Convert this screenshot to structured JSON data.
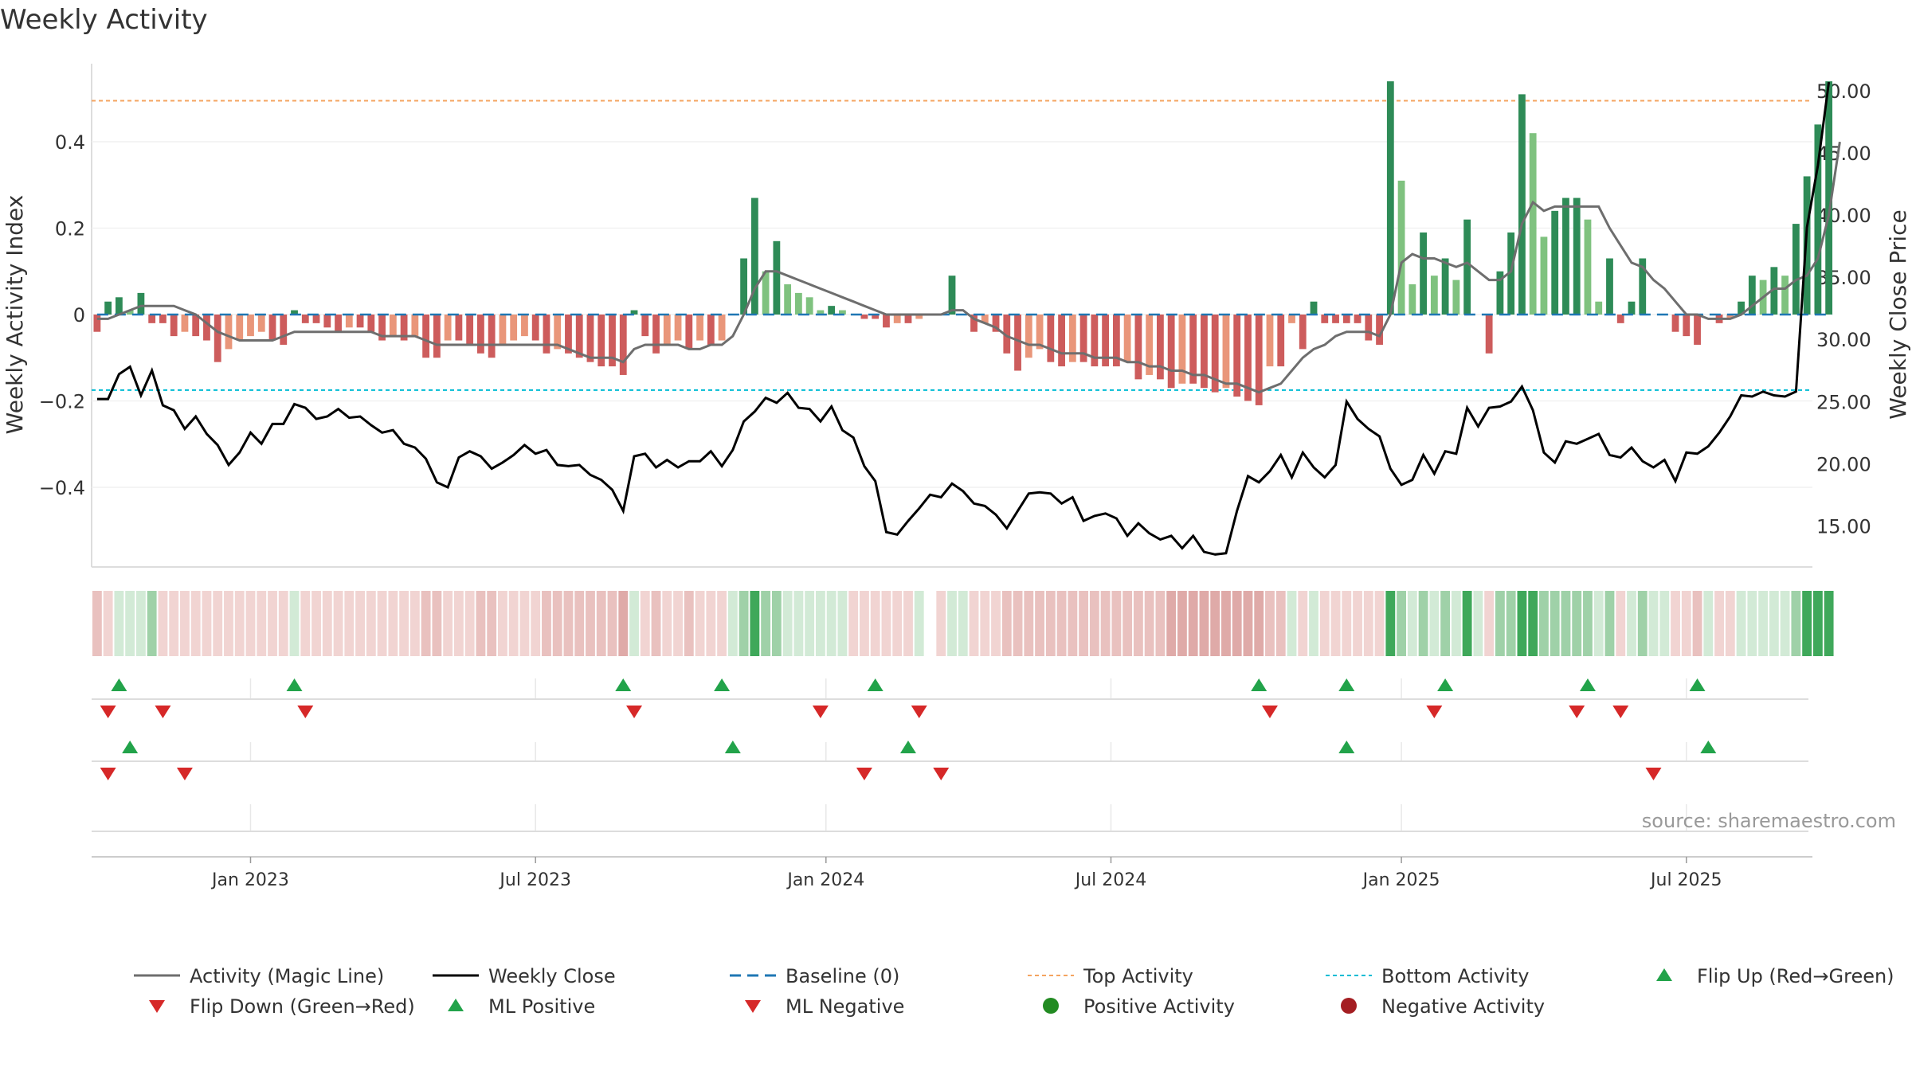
{
  "chart_data": {
    "type": "bar",
    "title": "Weekly Activity",
    "ylabel_left": "Weekly Activity Index",
    "ylabel_right": "Weekly Close Price",
    "left_ylim": [
      -0.59,
      0.59
    ],
    "right_ylim": [
      11.5,
      52.5
    ],
    "left_ticks": [
      {
        "v": 0.4,
        "label": "0.4"
      },
      {
        "v": 0.2,
        "label": "0.2"
      },
      {
        "v": 0,
        "label": "0"
      },
      {
        "v": -0.2,
        "label": "−0.2"
      },
      {
        "v": -0.4,
        "label": "−0.4"
      }
    ],
    "right_ticks": [
      {
        "v": 50,
        "label": "50.00"
      },
      {
        "v": 45,
        "label": "45.00"
      },
      {
        "v": 40,
        "label": "40.00"
      },
      {
        "v": 35,
        "label": "35.00"
      },
      {
        "v": 30,
        "label": "30.00"
      },
      {
        "v": 25,
        "label": "25.00"
      },
      {
        "v": 20,
        "label": "20.00"
      },
      {
        "v": 15,
        "label": "15.00"
      }
    ],
    "x_ticks": [
      {
        "week": 14,
        "label": "Jan 2023"
      },
      {
        "week": 40,
        "label": "Jul 2023"
      },
      {
        "week": 66.5,
        "label": "Jan 2024"
      },
      {
        "week": 92.5,
        "label": "Jul 2024"
      },
      {
        "week": 119,
        "label": "Jan 2025"
      },
      {
        "week": 145,
        "label": "Jul 2025"
      }
    ],
    "x_range": [
      -0.5,
      156.5
    ],
    "top_activity": 0.495,
    "bottom_activity": -0.175,
    "source": "source: sharemaestro.com",
    "weekly_activity": [
      -0.04,
      0.03,
      0.04,
      0.01,
      0.05,
      -0.02,
      -0.02,
      -0.05,
      -0.04,
      -0.05,
      -0.06,
      -0.11,
      -0.08,
      -0.06,
      -0.05,
      -0.04,
      -0.06,
      -0.07,
      0.01,
      -0.02,
      -0.02,
      -0.03,
      -0.04,
      -0.03,
      -0.03,
      -0.04,
      -0.06,
      -0.05,
      -0.06,
      -0.05,
      -0.1,
      -0.1,
      -0.06,
      -0.06,
      -0.07,
      -0.09,
      -0.1,
      -0.07,
      -0.06,
      -0.05,
      -0.06,
      -0.09,
      -0.08,
      -0.09,
      -0.1,
      -0.11,
      -0.12,
      -0.12,
      -0.14,
      0.01,
      -0.05,
      -0.09,
      -0.07,
      -0.06,
      -0.08,
      -0.06,
      -0.07,
      -0.06,
      0.0,
      0.13,
      0.27,
      0.1,
      0.17,
      0.07,
      0.05,
      0.04,
      0.01,
      0.02,
      0.01,
      0.0,
      -0.01,
      -0.01,
      -0.03,
      -0.02,
      -0.02,
      -0.01,
      0.0,
      0.0,
      0.09,
      0.0,
      -0.04,
      -0.02,
      -0.04,
      -0.09,
      -0.13,
      -0.1,
      -0.08,
      -0.11,
      -0.12,
      -0.11,
      -0.11,
      -0.12,
      -0.12,
      -0.12,
      -0.11,
      -0.15,
      -0.14,
      -0.15,
      -0.17,
      -0.16,
      -0.16,
      -0.17,
      -0.18,
      -0.17,
      -0.19,
      -0.2,
      -0.21,
      -0.12,
      -0.12,
      -0.02,
      -0.08,
      0.03,
      -0.02,
      -0.02,
      -0.02,
      -0.02,
      -0.06,
      -0.07,
      0.54,
      0.31,
      0.07,
      0.19,
      0.09,
      0.13,
      0.08,
      0.22,
      0.0,
      -0.09,
      0.1,
      0.19,
      0.51,
      0.42,
      0.18,
      0.24,
      0.27,
      0.27,
      0.22,
      0.03,
      0.13,
      -0.02,
      0.03,
      0.13,
      0.0,
      0.0,
      -0.04,
      -0.05,
      -0.07,
      0.0,
      -0.02,
      -0.01,
      0.03,
      0.09,
      0.08,
      0.11,
      0.09,
      0.21,
      0.32,
      0.44,
      0.54
    ],
    "activity_magic_line": [
      -0.01,
      -0.01,
      0.0,
      0.01,
      0.02,
      0.02,
      0.02,
      0.02,
      0.01,
      0.0,
      -0.02,
      -0.04,
      -0.05,
      -0.06,
      -0.06,
      -0.06,
      -0.06,
      -0.05,
      -0.04,
      -0.04,
      -0.04,
      -0.04,
      -0.04,
      -0.04,
      -0.04,
      -0.04,
      -0.05,
      -0.05,
      -0.05,
      -0.05,
      -0.06,
      -0.07,
      -0.07,
      -0.07,
      -0.07,
      -0.07,
      -0.07,
      -0.07,
      -0.07,
      -0.07,
      -0.07,
      -0.07,
      -0.07,
      -0.08,
      -0.09,
      -0.1,
      -0.1,
      -0.1,
      -0.11,
      -0.08,
      -0.07,
      -0.07,
      -0.07,
      -0.07,
      -0.08,
      -0.08,
      -0.07,
      -0.07,
      -0.05,
      0.0,
      0.06,
      0.1,
      0.1,
      0.09,
      0.08,
      0.07,
      0.06,
      0.05,
      0.04,
      0.03,
      0.02,
      0.01,
      0.0,
      0.0,
      0.0,
      0.0,
      0.0,
      0.0,
      0.01,
      0.01,
      -0.01,
      -0.02,
      -0.03,
      -0.05,
      -0.06,
      -0.07,
      -0.07,
      -0.08,
      -0.09,
      -0.09,
      -0.09,
      -0.1,
      -0.1,
      -0.1,
      -0.11,
      -0.11,
      -0.12,
      -0.12,
      -0.13,
      -0.13,
      -0.14,
      -0.14,
      -0.15,
      -0.16,
      -0.16,
      -0.17,
      -0.18,
      -0.17,
      -0.16,
      -0.13,
      -0.1,
      -0.08,
      -0.07,
      -0.05,
      -0.04,
      -0.04,
      -0.04,
      -0.05,
      0.0,
      0.12,
      0.14,
      0.13,
      0.13,
      0.12,
      0.11,
      0.12,
      0.1,
      0.08,
      0.08,
      0.1,
      0.21,
      0.26,
      0.24,
      0.25,
      0.25,
      0.25,
      0.25,
      0.25,
      0.2,
      0.16,
      0.12,
      0.11,
      0.08,
      0.06,
      0.03,
      0.0,
      0.0,
      -0.01,
      -0.01,
      -0.01,
      0.0,
      0.02,
      0.04,
      0.06,
      0.06,
      0.08,
      0.09,
      0.13,
      0.23,
      0.4
    ],
    "weekly_close": [
      25.2,
      25.2,
      27.2,
      27.8,
      25.5,
      27.5,
      24.7,
      24.3,
      22.8,
      23.8,
      22.4,
      21.5,
      19.9,
      20.9,
      22.5,
      21.6,
      23.2,
      23.2,
      24.8,
      24.5,
      23.6,
      23.8,
      24.4,
      23.7,
      23.8,
      23.1,
      22.5,
      22.7,
      21.6,
      21.3,
      20.4,
      18.5,
      18.1,
      20.5,
      21.0,
      20.6,
      19.6,
      20.1,
      20.7,
      21.5,
      20.8,
      21.1,
      19.9,
      19.8,
      19.9,
      19.1,
      18.7,
      17.9,
      16.2,
      20.6,
      20.8,
      19.7,
      20.3,
      19.7,
      20.2,
      20.2,
      21.0,
      19.8,
      21.1,
      23.4,
      24.2,
      25.3,
      24.9,
      25.7,
      24.5,
      24.4,
      23.4,
      24.6,
      22.7,
      22.1,
      19.8,
      18.6,
      14.5,
      14.3,
      15.4,
      16.4,
      17.5,
      17.3,
      18.4,
      17.8,
      16.8,
      16.6,
      15.9,
      14.8,
      16.2,
      17.6,
      17.7,
      17.6,
      16.8,
      17.3,
      15.4,
      15.8,
      16.0,
      15.6,
      14.2,
      15.2,
      14.4,
      13.9,
      14.2,
      13.2,
      14.2,
      12.9,
      12.7,
      12.8,
      16.2,
      19.0,
      18.5,
      19.4,
      20.7,
      18.9,
      20.9,
      19.7,
      18.9,
      19.9,
      25.0,
      23.6,
      22.8,
      22.2,
      19.6,
      18.3,
      18.7,
      20.7,
      19.2,
      21.0,
      20.8,
      24.5,
      23.0,
      24.5,
      24.6,
      25.0,
      26.2,
      24.3,
      20.9,
      20.1,
      21.8,
      21.6,
      22.0,
      22.4,
      20.7,
      20.5,
      21.3,
      20.2,
      19.7,
      20.3,
      18.6,
      20.9,
      20.8,
      21.4,
      22.5,
      23.8,
      25.5,
      25.4,
      25.8,
      25.5,
      25.4,
      25.8,
      39.0,
      44.0,
      50.7
    ],
    "intensity_strip": [
      -2,
      -1,
      1,
      1,
      1,
      2,
      -1,
      -1,
      -1,
      -1,
      -1,
      -1,
      -1,
      -1,
      -1,
      -1,
      -1,
      -1,
      1,
      -1,
      -1,
      -1,
      -1,
      -1,
      -1,
      -1,
      -1,
      -1,
      -1,
      -1,
      -2,
      -2,
      -1,
      -1,
      -1,
      -2,
      -2,
      -1,
      -1,
      -1,
      -1,
      -2,
      -2,
      -2,
      -2,
      -2,
      -2,
      -2,
      -3,
      1,
      -1,
      -2,
      -1,
      -1,
      -2,
      -1,
      -1,
      -1,
      1,
      2,
      3,
      2,
      2,
      1,
      1,
      1,
      1,
      1,
      1,
      -1,
      -1,
      -1,
      -1,
      -1,
      -1,
      1,
      0,
      -1,
      1,
      1,
      -1,
      -1,
      -1,
      -2,
      -2,
      -2,
      -2,
      -2,
      -2,
      -2,
      -2,
      -2,
      -2,
      -2,
      -2,
      -2,
      -2,
      -2,
      -3,
      -3,
      -3,
      -3,
      -3,
      -3,
      -3,
      -3,
      -3,
      -2,
      -2,
      1,
      -1,
      1,
      -1,
      -1,
      -1,
      -1,
      -1,
      -1,
      3,
      2,
      1,
      2,
      1,
      2,
      1,
      3,
      1,
      -1,
      2,
      2,
      3,
      3,
      2,
      2,
      2,
      2,
      2,
      1,
      2,
      -1,
      1,
      2,
      1,
      1,
      -1,
      -1,
      -2,
      1,
      -1,
      -1,
      1,
      1,
      1,
      1,
      1,
      2,
      3,
      3,
      3
    ],
    "flip_up": [
      2,
      18,
      48,
      57,
      71,
      106,
      114,
      123,
      136,
      146
    ],
    "flip_down": [
      1,
      6,
      19,
      49,
      66,
      75,
      107,
      122,
      135,
      139
    ],
    "ml_positive": [
      3,
      58,
      74,
      114,
      147
    ],
    "ml_negative": [
      1,
      8,
      70,
      77,
      142
    ],
    "positive_activity": [],
    "negative_activity": [],
    "legend": [
      {
        "key": "magic",
        "label": "Activity (Magic Line)"
      },
      {
        "key": "close",
        "label": "Weekly Close"
      },
      {
        "key": "baseline",
        "label": "Baseline (0)"
      },
      {
        "key": "top",
        "label": "Top Activity"
      },
      {
        "key": "bottom",
        "label": "Bottom Activity"
      },
      {
        "key": "flipup",
        "label": "Flip Up (Red→Green)"
      },
      {
        "key": "flipdown",
        "label": "Flip Down (Green→Red)"
      },
      {
        "key": "mlpos",
        "label": "ML Positive"
      },
      {
        "key": "mlneg",
        "label": "ML Negative"
      },
      {
        "key": "posact",
        "label": "Positive Activity"
      },
      {
        "key": "negact",
        "label": "Negative Activity"
      }
    ],
    "colors": {
      "strong_green": "#2e8b57",
      "light_green": "#7fc27f",
      "strong_red": "#cd5c5c",
      "light_red": "#e9967a",
      "magic_line": "#6e6e6e",
      "close_line": "#000000",
      "baseline": "#1f77b4",
      "top_line": "#f4a460",
      "bottom_line": "#00bcd4",
      "marker_green": "#22a34a",
      "marker_red": "#d62828",
      "dot_green": "#228b22",
      "dot_red": "#a41e22"
    }
  }
}
